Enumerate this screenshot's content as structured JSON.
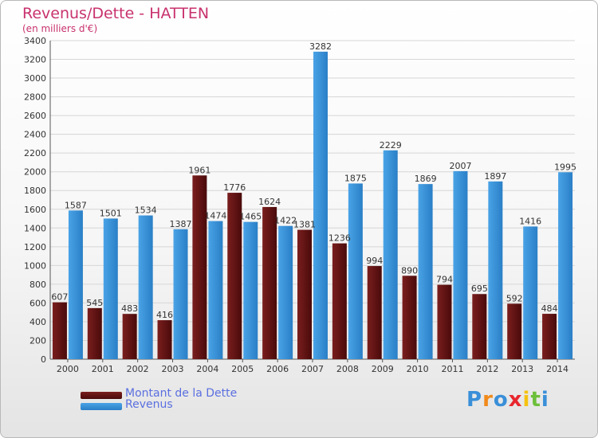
{
  "header": {
    "title": "Revenus/Dette - HATTEN",
    "subtitle": "(en milliers d'€)"
  },
  "legend": {
    "debt_label": "Montant de la Dette",
    "revenue_label": "Revenus"
  },
  "logo": {
    "letters": [
      "P",
      "r",
      "o",
      "x",
      "i",
      "t",
      "i"
    ]
  },
  "colors": {
    "debt": "#7a1e1e",
    "debt_dark": "#4a0a0a",
    "revenue": "#4aa3e6",
    "revenue_dark": "#2a7fc6",
    "title": "#c8326e",
    "legend_text": "#5a6fe0"
  },
  "chart_data": {
    "type": "bar",
    "title": "Revenus/Dette - HATTEN",
    "subtitle": "(en milliers d'€)",
    "xlabel": "",
    "ylabel": "",
    "ylim": [
      0,
      3400
    ],
    "ytick_step": 200,
    "categories": [
      "2000",
      "2001",
      "2002",
      "2003",
      "2004",
      "2005",
      "2006",
      "2007",
      "2008",
      "2009",
      "2010",
      "2011",
      "2012",
      "2013",
      "2014"
    ],
    "series": [
      {
        "name": "Montant de la Dette",
        "values": [
          607,
          545,
          483,
          416,
          1961,
          1776,
          1624,
          1381,
          1236,
          994,
          890,
          794,
          695,
          592,
          484
        ]
      },
      {
        "name": "Revenus",
        "values": [
          1587,
          1501,
          1534,
          1387,
          1474,
          1465,
          1422,
          3282,
          1875,
          2229,
          1869,
          2007,
          1897,
          1416,
          1995
        ]
      }
    ]
  }
}
